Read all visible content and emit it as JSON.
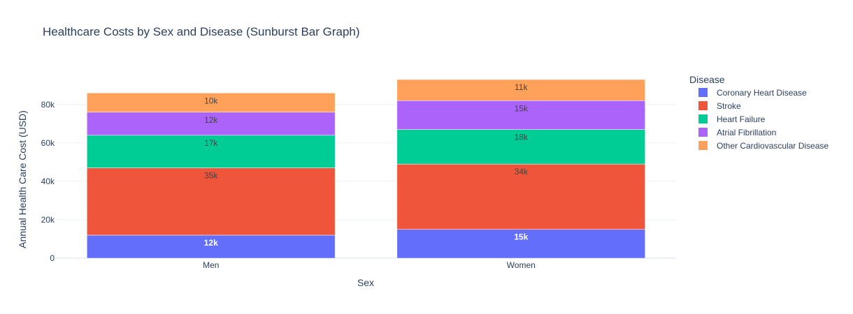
{
  "chart_data": {
    "type": "bar",
    "stacked": true,
    "title": "Healthcare Costs by Sex and Disease (Sunburst Bar Graph)",
    "xlabel": "Sex",
    "ylabel": "Annual Health Care Cost (USD)",
    "categories": [
      "Men",
      "Women"
    ],
    "ylim": [
      0,
      93000
    ],
    "yticks": [
      0,
      20000,
      40000,
      60000,
      80000
    ],
    "ytick_labels": [
      "0",
      "20k",
      "40k",
      "60k",
      "80k"
    ],
    "legend_title": "Disease",
    "legend_position": "right",
    "grid": true,
    "series": [
      {
        "name": "Coronary Heart Disease",
        "color": "#636efa",
        "values": [
          12000,
          15000
        ],
        "labels": [
          "12k",
          "15k"
        ]
      },
      {
        "name": "Stroke",
        "color": "#ef553b",
        "values": [
          35000,
          34000
        ],
        "labels": [
          "35k",
          "34k"
        ]
      },
      {
        "name": "Heart Failure",
        "color": "#00cc96",
        "values": [
          17000,
          18000
        ],
        "labels": [
          "17k",
          "18k"
        ]
      },
      {
        "name": "Atrial Fibrillation",
        "color": "#ab63fa",
        "values": [
          12000,
          15000
        ],
        "labels": [
          "12k",
          "15k"
        ]
      },
      {
        "name": "Other Cardiovascular Disease",
        "color": "#ffa15a",
        "values": [
          10000,
          11000
        ],
        "labels": [
          "10k",
          "11k"
        ]
      }
    ]
  }
}
